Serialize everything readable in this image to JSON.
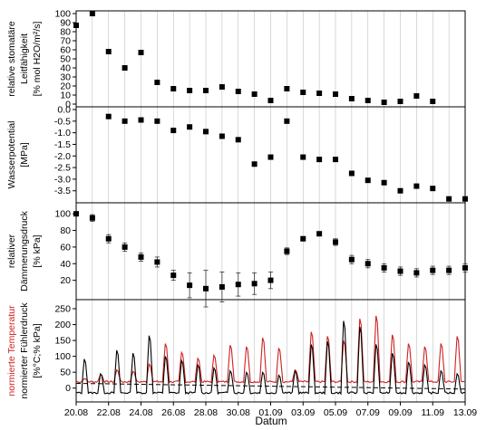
{
  "chart_data": {
    "type": "multi-panel",
    "xlabel": "Datum",
    "x_ticks": [
      "20.08",
      "22.08",
      "24.08",
      "26.08",
      "28.08",
      "30.08",
      "01.09",
      "03.09",
      "05.09",
      "07.09",
      "09.09",
      "11.09",
      "13.09"
    ],
    "x_range": [
      "20.08",
      "13.09"
    ],
    "grid": "vertical lines at each day",
    "panels": [
      {
        "type": "scatter",
        "ylabel_lines": [
          "relative stomatäre",
          "Leitfähigkeit",
          "[% mol H2O/m²/s]"
        ],
        "ylim": [
          0,
          100
        ],
        "yticks": [
          0,
          10,
          20,
          30,
          40,
          50,
          60,
          70,
          80,
          90,
          100
        ],
        "series": [
          {
            "x": [
              "20.08",
              "21.08",
              "22.08",
              "23.08",
              "24.08",
              "25.08",
              "26.08",
              "27.08",
              "28.08",
              "29.08",
              "30.08",
              "31.08",
              "01.09",
              "02.09",
              "03.09",
              "04.09",
              "05.09",
              "06.09",
              "07.09",
              "08.09",
              "09.09",
              "10.09",
              "11.09"
            ],
            "y": [
              87,
              100,
              58,
              40,
              57,
              24,
              17,
              15,
              15,
              19,
              14,
              11,
              4,
              17,
              13,
              12,
              11,
              6,
              4,
              2,
              3,
              9,
              3
            ]
          }
        ]
      },
      {
        "type": "scatter",
        "ylabel_lines": [
          "Wasserpotential",
          "[MPa]"
        ],
        "ylim": [
          -3.9,
          0
        ],
        "yticks": [
          0,
          -0.5,
          -1.0,
          -1.5,
          -2.0,
          -2.5,
          -3.0,
          -3.5
        ],
        "ytick_labels": [
          "0.0",
          "-0.5",
          "-1.0",
          "-1.5",
          "-2.0",
          "-2.5",
          "-3.0",
          "-3.5"
        ],
        "series": [
          {
            "x": [
              "22.08",
              "23.08",
              "24.08",
              "25.08",
              "26.08",
              "27.08",
              "28.08",
              "29.08",
              "30.08",
              "31.08",
              "01.09",
              "02.09",
              "03.09",
              "04.09",
              "05.09",
              "06.09",
              "07.09",
              "08.09",
              "09.09",
              "10.09",
              "11.09",
              "12.09",
              "13.09"
            ],
            "y": [
              -0.3,
              -0.5,
              -0.45,
              -0.5,
              -0.9,
              -0.75,
              -0.95,
              -1.15,
              -1.3,
              -2.35,
              -2.05,
              -0.5,
              -2.05,
              -2.15,
              -2.15,
              -2.75,
              -3.05,
              -3.15,
              -3.5,
              -3.3,
              -3.4,
              -3.85,
              -3.85
            ]
          }
        ]
      },
      {
        "type": "scatter-errorbar",
        "ylabel_lines": [
          "relativer",
          "Dämmerungsdruck",
          "[% kPa]"
        ],
        "ylim": [
          0,
          110
        ],
        "yticks": [
          20,
          40,
          60,
          80,
          100
        ],
        "series": [
          {
            "x": [
              "20.08",
              "21.08",
              "22.08",
              "23.08",
              "24.08",
              "25.08",
              "26.08",
              "27.08",
              "28.08",
              "29.08",
              "30.08",
              "31.08",
              "01.09",
              "02.09",
              "03.09",
              "04.09",
              "05.09",
              "06.09",
              "07.09",
              "08.09",
              "09.09",
              "10.09",
              "11.09",
              "12.09",
              "13.09"
            ],
            "y": [
              100,
              95,
              70,
              60,
              48,
              42,
              26,
              14,
              10,
              12,
              15,
              16,
              20,
              55,
              70,
              76,
              66,
              45,
              40,
              35,
              31,
              29,
              32,
              32,
              35
            ],
            "err": [
              0,
              4,
              5,
              5,
              5,
              6,
              6,
              15,
              22,
              18,
              14,
              13,
              10,
              4,
              0,
              0,
              4,
              5,
              5,
              5,
              5,
              5,
              5,
              5,
              5
            ]
          }
        ]
      },
      {
        "type": "line",
        "ylabel_red": "normierte Temperatur",
        "ylabel_lines": [
          "normierter Fühlerdruck",
          "[%°C;% kPa]"
        ],
        "ylim": [
          -35,
          270
        ],
        "yticks": [
          0,
          50,
          100,
          150,
          200,
          250
        ],
        "series": [
          {
            "color": "#cc2222",
            "daily_peaks": [
              30,
              45,
              60,
              55,
              80,
              150,
              120,
              100,
              110,
              145,
              140,
              170,
              135,
              60,
              190,
              175,
              160,
              235,
              245,
              180,
              150,
              140,
              150,
              175,
              110
            ]
          },
          {
            "color": "#000000",
            "daily_peaks": [
              100,
              50,
              130,
              120,
              180,
              110,
              95,
              80,
              70,
              60,
              55,
              55,
              45,
              60,
              150,
              160,
              230,
              210,
              150,
              120,
              90,
              80,
              60,
              50,
              40
            ]
          },
          {
            "color": "#000000",
            "dash": "dashed",
            "start_value": 15,
            "end_value": -3
          }
        ]
      }
    ]
  }
}
